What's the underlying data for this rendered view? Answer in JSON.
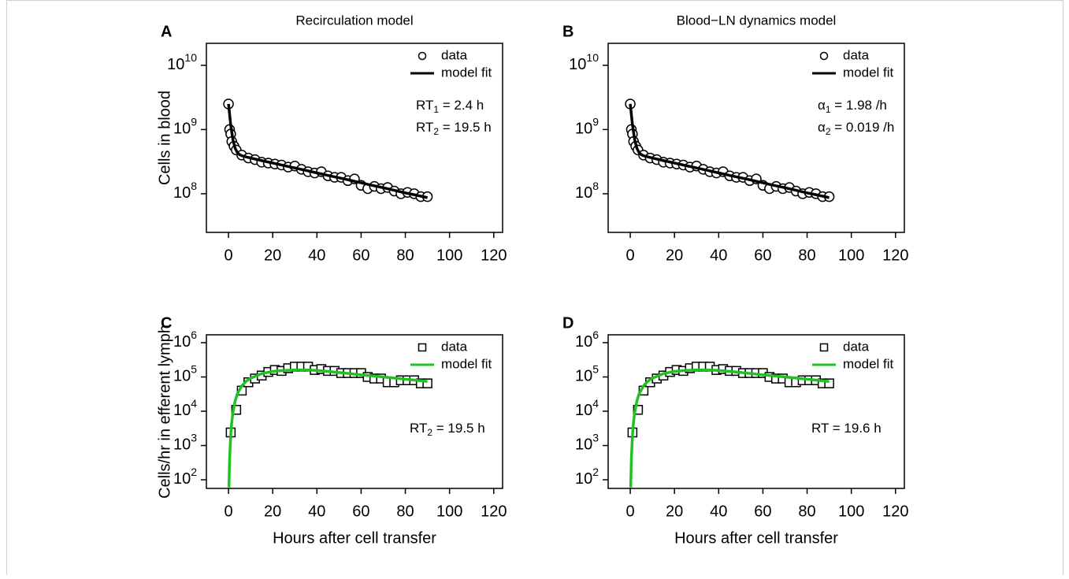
{
  "chart_data": [
    {
      "type": "scatter",
      "panel": "A",
      "title": "Recirculation model",
      "ylabel": "Cells in blood",
      "yscale": "log",
      "xlim": [
        -10,
        124
      ],
      "ylim": [
        25000000,
        22000000000
      ],
      "xticks": [
        0,
        20,
        40,
        60,
        80,
        100,
        120
      ],
      "yticks": [
        {
          "value": 100000000,
          "label": "10",
          "exponent": "8"
        },
        {
          "value": 1000000000,
          "label": "10",
          "exponent": "9"
        },
        {
          "value": 10000000000,
          "label": "10",
          "exponent": "10"
        }
      ],
      "series": [
        {
          "name": "data",
          "mode": "markers",
          "marker": "circle",
          "color": "#000000",
          "x": [
            0,
            0.5,
            1,
            1.5,
            2.5,
            3.5,
            6,
            9,
            12,
            15,
            18,
            21,
            24,
            27,
            30,
            33,
            36,
            39,
            42,
            45,
            48,
            51,
            54,
            57,
            60,
            63,
            66,
            69,
            72,
            75,
            78,
            81,
            84,
            87,
            90
          ],
          "values": [
            2500000000,
            1000000000,
            850000000,
            650000000,
            550000000,
            480000000,
            400000000,
            360000000,
            340000000,
            310000000,
            300000000,
            290000000,
            280000000,
            260000000,
            270000000,
            240000000,
            220000000,
            210000000,
            220000000,
            190000000,
            180000000,
            180000000,
            160000000,
            170000000,
            135000000,
            120000000,
            130000000,
            120000000,
            125000000,
            110000000,
            100000000,
            105000000,
            100000000,
            90000000,
            90000000
          ]
        },
        {
          "name": "model fit",
          "mode": "line",
          "color": "#000000",
          "x": [
            0,
            1,
            2,
            3,
            4,
            5,
            6,
            8,
            10,
            15,
            20,
            25,
            30,
            35,
            40,
            45,
            50,
            55,
            60,
            65,
            70,
            75,
            80,
            85,
            90
          ],
          "values": [
            2500000000,
            1180000000,
            695000000,
            511000000,
            438000000,
            407000000,
            391000000,
            374000000,
            360000000,
            328000000,
            301000000,
            275000000,
            252000000,
            231000000,
            211000000,
            193000000,
            177000000,
            162000000,
            148000000,
            135000000,
            124000000,
            113000000,
            103000000,
            95000000,
            87000000
          ]
        }
      ],
      "annotations": [
        {
          "text": "RT",
          "sub": "1",
          "after": " = 2.4 h"
        },
        {
          "text": "RT",
          "sub": "2",
          "after": " = 19.5 h"
        }
      ]
    },
    {
      "type": "scatter",
      "panel": "B",
      "title": "Blood−LN dynamics model",
      "yscale": "log",
      "xlim": [
        -10,
        124
      ],
      "ylim": [
        25000000,
        22000000000
      ],
      "xticks": [
        0,
        20,
        40,
        60,
        80,
        100,
        120
      ],
      "yticks": [
        {
          "value": 100000000,
          "label": "10",
          "exponent": "8"
        },
        {
          "value": 1000000000,
          "label": "10",
          "exponent": "9"
        },
        {
          "value": 10000000000,
          "label": "10",
          "exponent": "10"
        }
      ],
      "series": [
        {
          "name": "data",
          "mode": "markers",
          "marker": "circle",
          "color": "#000000",
          "x": [
            0,
            0.5,
            1,
            1.5,
            2.5,
            3.5,
            6,
            9,
            12,
            15,
            18,
            21,
            24,
            27,
            30,
            33,
            36,
            39,
            42,
            45,
            48,
            51,
            54,
            57,
            60,
            63,
            66,
            69,
            72,
            75,
            78,
            81,
            84,
            87,
            90
          ],
          "values": [
            2500000000,
            1000000000,
            850000000,
            650000000,
            550000000,
            480000000,
            400000000,
            360000000,
            340000000,
            310000000,
            300000000,
            290000000,
            280000000,
            260000000,
            270000000,
            240000000,
            220000000,
            210000000,
            220000000,
            190000000,
            180000000,
            180000000,
            160000000,
            170000000,
            135000000,
            120000000,
            130000000,
            120000000,
            125000000,
            110000000,
            100000000,
            105000000,
            100000000,
            90000000,
            90000000
          ]
        },
        {
          "name": "model fit",
          "mode": "line",
          "color": "#000000",
          "x": [
            0,
            1,
            2,
            3,
            4,
            5,
            6,
            8,
            10,
            15,
            20,
            25,
            30,
            35,
            40,
            45,
            50,
            55,
            60,
            65,
            70,
            75,
            80,
            85,
            90
          ],
          "values": [
            2500000000,
            1180000000,
            695000000,
            511000000,
            438000000,
            407000000,
            391000000,
            374000000,
            360000000,
            328000000,
            301000000,
            275000000,
            252000000,
            231000000,
            211000000,
            193000000,
            177000000,
            162000000,
            148000000,
            135000000,
            124000000,
            113000000,
            103000000,
            95000000,
            87000000
          ]
        }
      ],
      "annotations": [
        {
          "text": "α",
          "sub": "1",
          "after": " = 1.98 /h"
        },
        {
          "text": "α",
          "sub": "2",
          "after": " = 0.019 /h"
        }
      ]
    },
    {
      "type": "scatter",
      "panel": "C",
      "ylabel": "Cells/hr in efferent lymph",
      "xlabel": "Hours after cell transfer",
      "yscale": "log",
      "xlim": [
        -10,
        124
      ],
      "ylim": [
        56,
        1700000
      ],
      "xticks": [
        0,
        20,
        40,
        60,
        80,
        100,
        120
      ],
      "yticks": [
        {
          "value": 100,
          "label": "10",
          "exponent": "2"
        },
        {
          "value": 1000,
          "label": "10",
          "exponent": "3"
        },
        {
          "value": 10000,
          "label": "10",
          "exponent": "4"
        },
        {
          "value": 100000,
          "label": "10",
          "exponent": "5"
        },
        {
          "value": 1000000,
          "label": "10",
          "exponent": "6"
        }
      ],
      "series": [
        {
          "name": "data",
          "mode": "markers",
          "marker": "square",
          "color": "#000000",
          "x": [
            1,
            3.5,
            6,
            9,
            12,
            15,
            18,
            21,
            24,
            27,
            30,
            33,
            36,
            39,
            42,
            45,
            48,
            51,
            54,
            57,
            60,
            63,
            66,
            69,
            72,
            75,
            78,
            81,
            84,
            87,
            90
          ],
          "values": [
            2400,
            11000,
            40000,
            70000,
            90000,
            110000,
            140000,
            160000,
            150000,
            180000,
            200000,
            200000,
            200000,
            160000,
            170000,
            150000,
            150000,
            130000,
            130000,
            130000,
            130000,
            100000,
            90000,
            90000,
            70000,
            70000,
            80000,
            80000,
            80000,
            65000,
            65000
          ]
        },
        {
          "name": "model fit",
          "mode": "line",
          "color": "#1fc31f",
          "x": [
            0.2,
            0.5,
            1,
            1.5,
            2,
            3,
            4,
            6,
            8,
            10,
            15,
            20,
            25,
            30,
            35,
            40,
            45,
            50,
            55,
            60,
            65,
            70,
            75,
            80,
            85,
            90
          ],
          "values": [
            60,
            400,
            2000,
            5000,
            9000,
            20000,
            32000,
            55000,
            75000,
            92000,
            125000,
            145000,
            155000,
            160000,
            160000,
            155000,
            145000,
            135000,
            125000,
            115000,
            108000,
            100000,
            93000,
            86000,
            80000,
            74000
          ]
        }
      ],
      "annotations": [
        {
          "text": "RT",
          "sub": "2",
          "after": " = 19.5 h"
        }
      ]
    },
    {
      "type": "scatter",
      "panel": "D",
      "xlabel": "Hours after cell transfer",
      "yscale": "log",
      "xlim": [
        -10,
        124
      ],
      "ylim": [
        56,
        1700000
      ],
      "xticks": [
        0,
        20,
        40,
        60,
        80,
        100,
        120
      ],
      "yticks": [
        {
          "value": 100,
          "label": "10",
          "exponent": "2"
        },
        {
          "value": 1000,
          "label": "10",
          "exponent": "3"
        },
        {
          "value": 10000,
          "label": "10",
          "exponent": "4"
        },
        {
          "value": 100000,
          "label": "10",
          "exponent": "5"
        },
        {
          "value": 1000000,
          "label": "10",
          "exponent": "6"
        }
      ],
      "series": [
        {
          "name": "data",
          "mode": "markers",
          "marker": "square",
          "color": "#000000",
          "x": [
            1,
            3.5,
            6,
            9,
            12,
            15,
            18,
            21,
            24,
            27,
            30,
            33,
            36,
            39,
            42,
            45,
            48,
            51,
            54,
            57,
            60,
            63,
            66,
            69,
            72,
            75,
            78,
            81,
            84,
            87,
            90
          ],
          "values": [
            2400,
            11000,
            40000,
            70000,
            90000,
            110000,
            140000,
            160000,
            150000,
            180000,
            200000,
            200000,
            200000,
            160000,
            170000,
            150000,
            150000,
            130000,
            130000,
            130000,
            130000,
            100000,
            90000,
            90000,
            70000,
            70000,
            80000,
            80000,
            80000,
            65000,
            65000
          ]
        },
        {
          "name": "model fit",
          "mode": "line",
          "color": "#1fc31f",
          "x": [
            0.2,
            0.5,
            1,
            1.5,
            2,
            3,
            4,
            6,
            8,
            10,
            15,
            20,
            25,
            30,
            35,
            40,
            45,
            50,
            55,
            60,
            65,
            70,
            75,
            80,
            85,
            90
          ],
          "values": [
            60,
            400,
            2000,
            5000,
            9000,
            20000,
            32000,
            55000,
            75000,
            92000,
            125000,
            145000,
            155000,
            160000,
            160000,
            155000,
            145000,
            135000,
            125000,
            115000,
            108000,
            100000,
            93000,
            86000,
            80000,
            74000
          ]
        }
      ],
      "annotations": [
        {
          "text": "RT = 19.6 h"
        }
      ]
    }
  ]
}
